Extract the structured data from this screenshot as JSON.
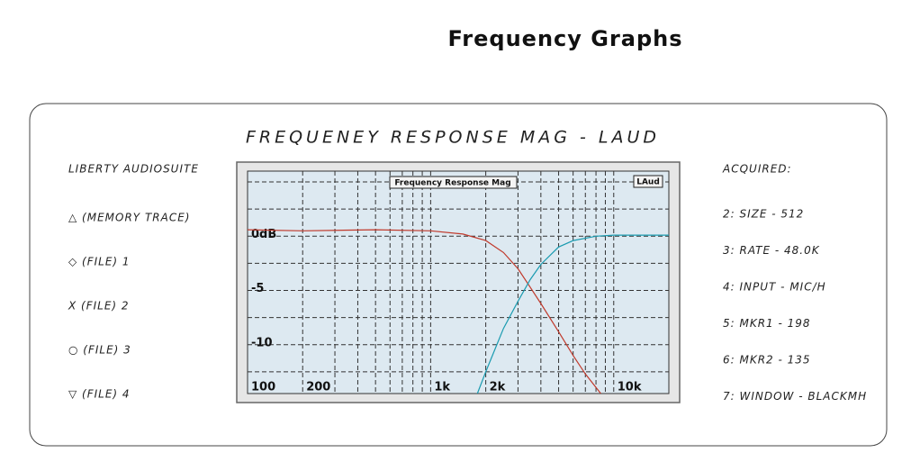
{
  "header": {
    "title": "Frequency Graphs"
  },
  "panel": {
    "heading": "FREQUENEY RESPONSE MAG - LAUD",
    "left": {
      "title": "LIBERTY AUDIOSUITE",
      "items": [
        "△ (MEMORY TRACE)",
        "◇ (FILE) 1",
        "X (FILE) 2",
        "○ (FILE) 3",
        "▽ (FILE) 4"
      ]
    },
    "right": {
      "title": "ACQUIRED:",
      "items": [
        "2:  SIZE - 512",
        "3:  RATE - 48.0K",
        "4: INPUT - MIC/H",
        "5:  MKR1 - 198",
        "6:  MKR2 - 135",
        "7:  WINDOW - BLACKMH"
      ]
    }
  },
  "chart_data": {
    "type": "line",
    "title": "Frequency Response Mag",
    "tag": "LAud",
    "xscale": "log",
    "xlim": [
      100,
      20000
    ],
    "xticks": [
      100,
      200,
      {
        "value": 1000,
        "label": "1k"
      },
      {
        "value": 2000,
        "label": "2k"
      },
      {
        "value": 10000,
        "label": "10k"
      }
    ],
    "xminor": [
      300,
      400,
      500,
      600,
      700,
      800,
      900,
      3000,
      4000,
      5000,
      6000,
      7000,
      8000,
      9000
    ],
    "ylim": [
      -14.5,
      6
    ],
    "yticks": [
      {
        "value": 0,
        "label": "0dB"
      },
      -5,
      -10
    ],
    "yminor": [
      5,
      2.5,
      -2.5,
      -7.5,
      -12.5
    ],
    "grid": true,
    "series": [
      {
        "color": "#c0392b",
        "x": [
          100,
          200,
          500,
          1000,
          1500,
          2000,
          2500,
          3000,
          3500,
          4000,
          5000,
          6000,
          7000,
          8500
        ],
        "values": [
          0.6,
          0.5,
          0.6,
          0.5,
          0.2,
          -0.4,
          -1.5,
          -3,
          -4.7,
          -6.2,
          -8.8,
          -11,
          -12.7,
          -14.5
        ]
      },
      {
        "color": "#1a9bb0",
        "x": [
          1800,
          2000,
          2500,
          3000,
          3500,
          4000,
          5000,
          6000,
          8000,
          10000,
          20000
        ],
        "values": [
          -14.5,
          -12.5,
          -8.5,
          -6,
          -4,
          -2.6,
          -1,
          -0.4,
          0,
          0.1,
          0.1
        ]
      }
    ]
  }
}
